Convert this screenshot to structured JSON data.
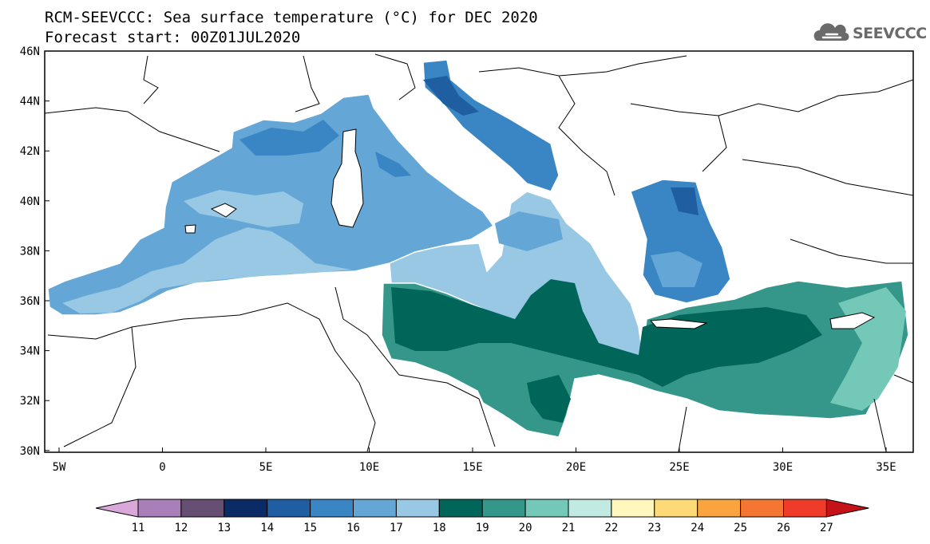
{
  "header": {
    "title_line1": "RCM-SEEVCCC: Sea surface temperature (°C) for DEC 2020",
    "title_line2": "Forecast start: 00Z01JUL2020"
  },
  "logo": {
    "text": "SEEVCCC",
    "icon": "cloud-icon"
  },
  "map": {
    "lat_labels": [
      "46N",
      "44N",
      "42N",
      "40N",
      "38N",
      "36N",
      "34N",
      "32N",
      "30N"
    ],
    "lon_labels": [
      "5W",
      "0",
      "5E",
      "10E",
      "15E",
      "20E",
      "25E",
      "30E",
      "35E"
    ]
  },
  "colorbar": {
    "labels": [
      "11",
      "12",
      "13",
      "14",
      "15",
      "16",
      "17",
      "18",
      "19",
      "20",
      "21",
      "22",
      "23",
      "24",
      "25",
      "26",
      "27"
    ],
    "colors": [
      "#d9a7d9",
      "#a97fba",
      "#674f73",
      "#0b2b66",
      "#1f5fa1",
      "#3a86c4",
      "#64a7d6",
      "#98c8e4",
      "#00665a",
      "#34978a",
      "#74c8b8",
      "#c1eae2",
      "#fff7bd",
      "#fdd978",
      "#f9a43e",
      "#f57633",
      "#ef3b2a",
      "#c51218"
    ]
  }
}
